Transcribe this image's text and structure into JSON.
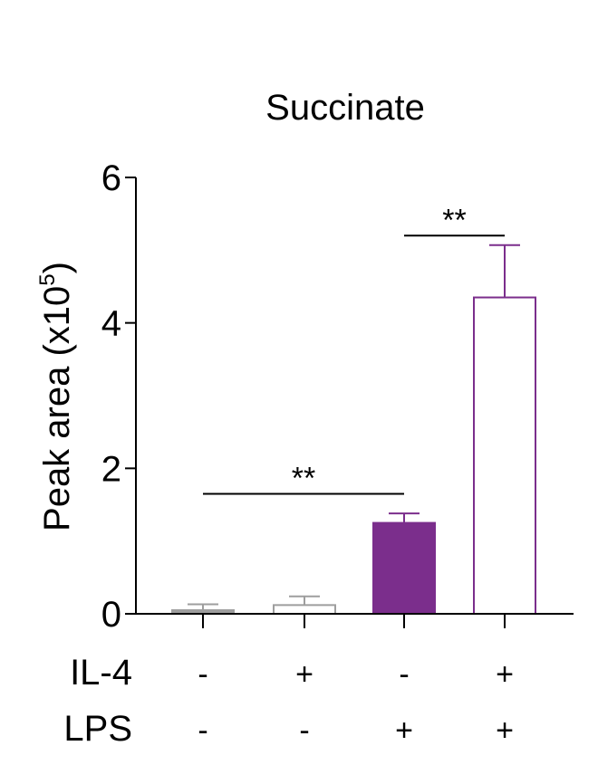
{
  "chart_data": {
    "type": "bar",
    "title": "Succinate",
    "ylabel": "Peak area (x10",
    "ylabel_exponent": "5",
    "ylabel_close": ")",
    "ylim": [
      0,
      6
    ],
    "yticks": [
      0,
      2,
      4,
      6
    ],
    "grid": false,
    "legend": "none",
    "bars": [
      {
        "value": 0.05,
        "error": 0.08,
        "fill": "#9e9e9e",
        "stroke": "#9e9e9e"
      },
      {
        "value": 0.12,
        "error": 0.12,
        "fill": "#ffffff",
        "stroke": "#9e9e9e"
      },
      {
        "value": 1.25,
        "error": 0.13,
        "fill": "#7b2e8c",
        "stroke": "#7b2e8c"
      },
      {
        "value": 4.35,
        "error": 0.72,
        "fill": "#ffffff",
        "stroke": "#7b2e8c"
      }
    ],
    "conditions": [
      {
        "name": "IL-4",
        "values": [
          "-",
          "+",
          "-",
          "+"
        ]
      },
      {
        "name": "LPS",
        "values": [
          "-",
          "-",
          "+",
          "+"
        ]
      }
    ],
    "significance": [
      {
        "from": 0,
        "to": 2,
        "label": "**",
        "y": 1.65
      },
      {
        "from": 2,
        "to": 3,
        "label": "**",
        "y": 5.2
      }
    ]
  }
}
